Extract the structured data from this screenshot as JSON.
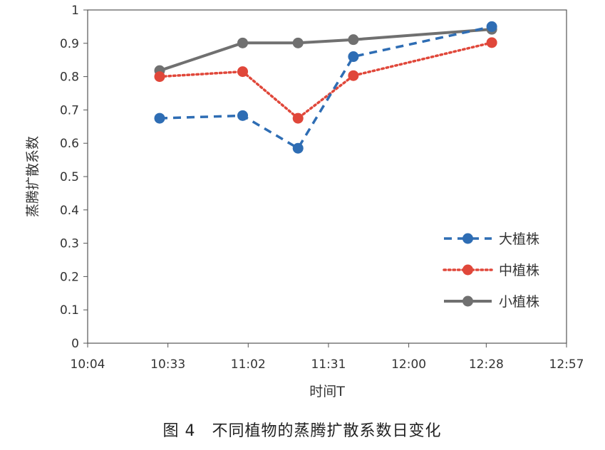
{
  "chart_data": {
    "type": "line",
    "xlabel": "时间T",
    "ylabel": "蒸腾扩散系数",
    "x_ticks": [
      "10:04",
      "10:33",
      "11:02",
      "11:31",
      "12:00",
      "12:28",
      "12:57"
    ],
    "y_ticks": [
      "0",
      "0.1",
      "0.2",
      "0.3",
      "0.4",
      "0.5",
      "0.6",
      "0.7",
      "0.8",
      "0.9",
      "1"
    ],
    "ylim": [
      0,
      1
    ],
    "xlim": [
      "10:04",
      "12:57"
    ],
    "grid": false,
    "legend_position": "bottom-right",
    "series": [
      {
        "name": "大植株",
        "color": "#2e6db4",
        "line_style": "dashed",
        "points": [
          {
            "x": "10:30",
            "y": 0.675
          },
          {
            "x": "11:00",
            "y": 0.683
          },
          {
            "x": "11:20",
            "y": 0.585
          },
          {
            "x": "11:40",
            "y": 0.86
          },
          {
            "x": "12:30",
            "y": 0.95
          }
        ]
      },
      {
        "name": "中植株",
        "color": "#e0473a",
        "line_style": "dotted",
        "points": [
          {
            "x": "10:30",
            "y": 0.8
          },
          {
            "x": "11:00",
            "y": 0.815
          },
          {
            "x": "11:20",
            "y": 0.675
          },
          {
            "x": "11:40",
            "y": 0.803
          },
          {
            "x": "12:30",
            "y": 0.902
          }
        ]
      },
      {
        "name": "小植株",
        "color": "#707070",
        "line_style": "solid",
        "points": [
          {
            "x": "10:30",
            "y": 0.818
          },
          {
            "x": "11:00",
            "y": 0.901
          },
          {
            "x": "11:20",
            "y": 0.901
          },
          {
            "x": "11:40",
            "y": 0.911
          },
          {
            "x": "12:30",
            "y": 0.942
          }
        ]
      }
    ]
  },
  "caption": "图 4　不同植物的蒸腾扩散系数日变化"
}
